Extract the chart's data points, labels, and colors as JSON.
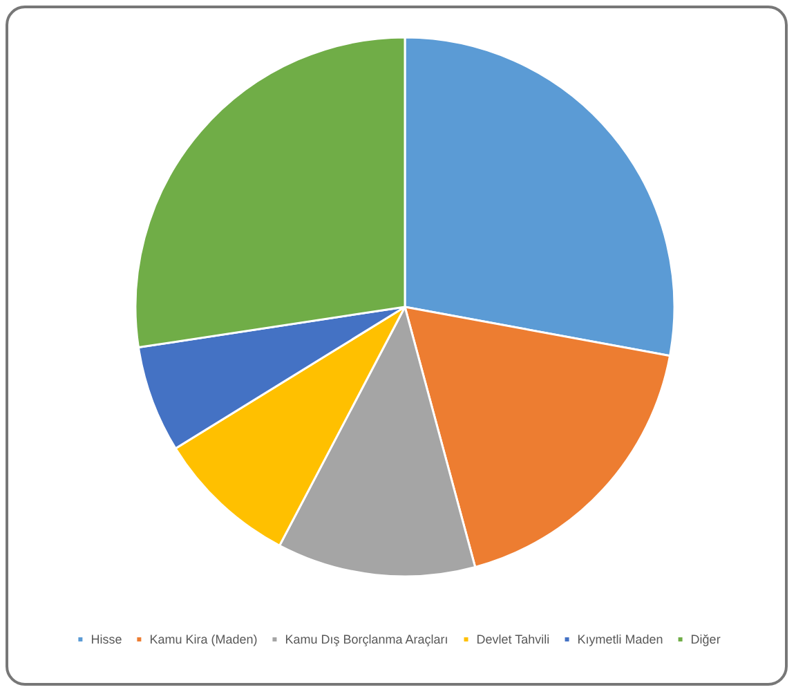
{
  "chart_data": {
    "type": "pie",
    "categories": [
      "Hisse",
      "Kamu Kira (Maden)",
      "Kamu Dış Borçlanma Araçları",
      "Devlet Tahvili",
      "Kıymetli Maden",
      "Diğer"
    ],
    "values": [
      27.9,
      17.9,
      11.9,
      8.5,
      6.4,
      27.4
    ],
    "colors": [
      "#5b9bd5",
      "#ed7d31",
      "#a5a5a5",
      "#ffc000",
      "#4472c4",
      "#70ad47"
    ],
    "legend": "bottom"
  }
}
